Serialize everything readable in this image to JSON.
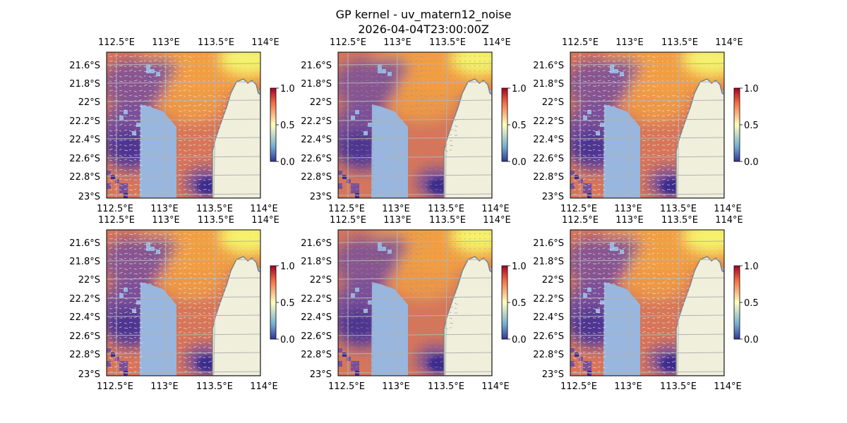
{
  "figure": {
    "title_line1": "GP kernel - uv_matern12_noise",
    "title_line2": "2026-04-04T23:00:00Z"
  },
  "map": {
    "lon_ticks": [
      "112.5°E",
      "113°E",
      "113.5°E",
      "114°E"
    ],
    "lat_ticks": [
      "21.6°S",
      "21.8°S",
      "22°S",
      "22.2°S",
      "22.4°S",
      "22.6°S",
      "22.8°S",
      "23°S"
    ],
    "colorbar_ticks": [
      "0.0",
      "0.5",
      "1.0"
    ],
    "colormap_low": "#313695",
    "colormap_mid": "#ffffbf",
    "colormap_high": "#a50026",
    "data_colors": {
      "low": "#3a2a8c",
      "mid_low": "#7a4f9a",
      "mid": "#d77559",
      "mid_high": "#f2a041",
      "high": "#f5f26a"
    },
    "ocean_color": "#98b6de",
    "land_color": "#efefdc",
    "coast_color": "#808080"
  },
  "panels": [
    {
      "id": 1,
      "arrows": "white"
    },
    {
      "id": 2,
      "arrows": "gray"
    },
    {
      "id": 3,
      "arrows": "white"
    },
    {
      "id": 4,
      "arrows": "white"
    },
    {
      "id": 5,
      "arrows": "gray"
    },
    {
      "id": 6,
      "arrows": "white"
    }
  ]
}
